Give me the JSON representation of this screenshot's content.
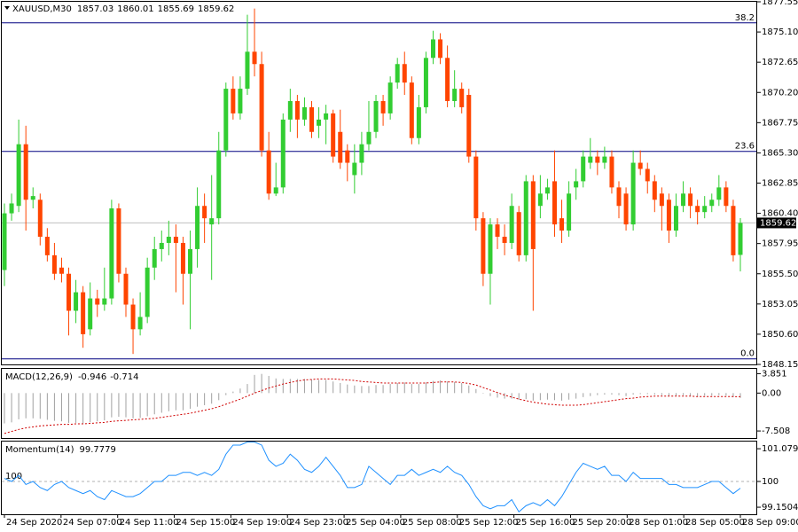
{
  "chart_data": [
    {
      "type": "candlestick",
      "title": "XAUUSD,M30",
      "header_values": [
        1857.03,
        1860.01,
        1855.69,
        1859.62
      ],
      "up_color": "#32cd32",
      "down_color": "#ff4500",
      "ylim": [
        1848.15,
        1877.55
      ],
      "yticks": [
        1877.55,
        {
          "value": 1875.1,
          "label": "1875.10"
        },
        1872.65,
        {
          "value": 1870.2,
          "label": "1870.20"
        },
        1867.75,
        {
          "value": 1865.3,
          "label": "1865.30"
        },
        1862.85,
        {
          "value": 1860.4,
          "label": "1860.40"
        },
        1857.95,
        {
          "value": 1855.5,
          "label": "1855.50"
        },
        1853.05,
        {
          "value": 1850.6,
          "label": "1850.60"
        },
        1848.15
      ],
      "fibo_levels": [
        {
          "name": "38.2",
          "value": 1875.84
        },
        {
          "name": "23.6",
          "value": 1865.42
        },
        {
          "name": "0.0",
          "value": 1848.6
        }
      ],
      "last_price": 1859.62,
      "open": [
        1855.8,
        1860.4,
        1861.0,
        1866.0,
        1861.5,
        1861.5,
        1858.5,
        1857.0,
        1856.0,
        1855.5,
        1852.5,
        1854.0,
        1851.0,
        1853.5,
        1853.0,
        1853.5,
        1860.8,
        1855.5,
        1853.0,
        1851.0,
        1852.0,
        1856.0,
        1857.5,
        1858.0,
        1858.5,
        1858.0,
        1855.5,
        1857.5,
        1861.0,
        1859.5,
        1860.0,
        1865.5,
        1870.5,
        1868.5,
        1870.5,
        1873.5,
        1872.5,
        1865.5,
        1862.0,
        1862.5,
        1868.0,
        1869.5,
        1868.0,
        1869.0,
        1867.5,
        1868.0,
        1868.5,
        1867.0,
        1865.5,
        1863.5,
        1864.5,
        1866.0,
        1867.0,
        1869.5,
        1868.5,
        1871.0,
        1872.5,
        1871.0,
        1866.5,
        1869.0,
        1873.0,
        1874.5,
        1873.0,
        1869.5,
        1870.5,
        1870.0,
        1865.0,
        1860.0,
        1855.5,
        1859.5,
        1858.5,
        1858.0,
        1860.5,
        1857.0,
        1863.0,
        1861.0,
        1862.0,
        1863.0,
        1860.0,
        1859.0,
        1862.5,
        1863.0,
        1864.5,
        1865.0,
        1864.5,
        1865.0,
        1862.5,
        1862.0,
        1859.5,
        1864.5,
        1864.0,
        1863.0,
        1862.0,
        1861.5,
        1859.0,
        1861.0,
        1862.0,
        1861.0,
        1860.5,
        1861.0,
        1861.5,
        1862.5,
        1861.0,
        1857.03
      ],
      "high": [
        1861.2,
        1862.0,
        1868.0,
        1867.5,
        1862.5,
        1862.0,
        1859.2,
        1858.0,
        1856.8,
        1856.0,
        1855.0,
        1854.5,
        1854.8,
        1854.2,
        1856.0,
        1861.5,
        1861.2,
        1856.0,
        1853.5,
        1854.0,
        1856.8,
        1858.5,
        1859.0,
        1859.8,
        1859.5,
        1858.5,
        1859.0,
        1862.5,
        1862.0,
        1863.5,
        1867.0,
        1871.0,
        1871.5,
        1871.5,
        1876.5,
        1877.0,
        1873.5,
        1867.0,
        1864.5,
        1868.5,
        1870.5,
        1870.0,
        1869.8,
        1869.5,
        1869.0,
        1869.2,
        1868.8,
        1868.8,
        1866.0,
        1866.0,
        1867.0,
        1869.5,
        1870.0,
        1870.0,
        1871.5,
        1873.0,
        1873.5,
        1871.5,
        1870.0,
        1873.5,
        1875.2,
        1875.0,
        1874.0,
        1872.0,
        1871.0,
        1870.5,
        1865.5,
        1860.5,
        1860.0,
        1860.0,
        1859.5,
        1862.0,
        1861.0,
        1863.5,
        1863.5,
        1863.5,
        1863.2,
        1865.5,
        1861.5,
        1863.0,
        1864.0,
        1865.5,
        1866.5,
        1865.5,
        1865.8,
        1865.5,
        1863.0,
        1862.5,
        1865.5,
        1865.5,
        1864.5,
        1863.5,
        1862.5,
        1862.0,
        1862.0,
        1863.0,
        1862.5,
        1861.5,
        1861.8,
        1862.0,
        1863.5,
        1863.0,
        1861.5,
        1860.01
      ],
      "low": [
        1854.5,
        1859.8,
        1860.5,
        1859.0,
        1860.8,
        1857.8,
        1856.5,
        1855.0,
        1854.8,
        1850.5,
        1851.5,
        1849.5,
        1850.5,
        1852.0,
        1852.5,
        1853.0,
        1854.8,
        1852.0,
        1849.0,
        1850.5,
        1851.5,
        1855.0,
        1856.5,
        1857.0,
        1854.0,
        1853.0,
        1851.0,
        1856.0,
        1858.0,
        1855.0,
        1859.5,
        1865.0,
        1868.0,
        1868.0,
        1870.0,
        1871.5,
        1865.0,
        1861.5,
        1861.8,
        1862.0,
        1867.0,
        1866.5,
        1867.5,
        1866.5,
        1866.5,
        1866.0,
        1864.5,
        1864.0,
        1863.0,
        1862.0,
        1863.5,
        1865.5,
        1866.5,
        1867.5,
        1868.0,
        1870.5,
        1870.0,
        1866.0,
        1866.0,
        1868.5,
        1872.5,
        1872.5,
        1869.0,
        1869.0,
        1868.5,
        1864.5,
        1859.0,
        1854.5,
        1853.0,
        1857.5,
        1857.0,
        1857.5,
        1856.5,
        1856.5,
        1852.5,
        1860.0,
        1861.5,
        1858.5,
        1858.0,
        1858.5,
        1861.5,
        1862.5,
        1864.0,
        1863.5,
        1864.0,
        1862.0,
        1860.0,
        1859.0,
        1859.0,
        1863.5,
        1862.0,
        1860.5,
        1859.0,
        1858.0,
        1858.5,
        1860.5,
        1860.0,
        1859.5,
        1860.0,
        1860.5,
        1861.0,
        1860.5,
        1856.5,
        1855.69
      ],
      "close": [
        1860.4,
        1861.2,
        1866.0,
        1861.5,
        1861.8,
        1858.5,
        1857.0,
        1855.5,
        1855.5,
        1852.5,
        1854.0,
        1850.6,
        1853.5,
        1853.0,
        1853.5,
        1860.8,
        1855.5,
        1853.0,
        1851.0,
        1852.0,
        1856.0,
        1857.5,
        1858.0,
        1858.5,
        1858.0,
        1855.5,
        1857.5,
        1861.0,
        1860.0,
        1860.0,
        1865.5,
        1870.5,
        1868.5,
        1870.5,
        1873.5,
        1872.5,
        1865.5,
        1862.0,
        1862.5,
        1868.0,
        1869.5,
        1868.0,
        1869.0,
        1867.0,
        1868.0,
        1868.5,
        1865.0,
        1864.5,
        1864.5,
        1864.5,
        1866.0,
        1867.0,
        1869.5,
        1868.5,
        1871.0,
        1872.5,
        1871.0,
        1866.5,
        1869.0,
        1873.0,
        1874.5,
        1873.0,
        1869.5,
        1870.5,
        1869.0,
        1865.0,
        1860.0,
        1855.5,
        1859.5,
        1858.5,
        1858.0,
        1861.0,
        1857.0,
        1863.0,
        1857.5,
        1862.0,
        1862.5,
        1859.5,
        1859.0,
        1862.0,
        1863.0,
        1865.0,
        1865.0,
        1864.5,
        1865.0,
        1862.5,
        1861.0,
        1859.5,
        1864.5,
        1864.0,
        1863.0,
        1861.5,
        1861.0,
        1859.0,
        1861.0,
        1862.0,
        1861.0,
        1860.5,
        1861.0,
        1861.5,
        1862.5,
        1861.0,
        1857.0,
        1859.62
      ],
      "x_tick_labels": [
        "24 Sep 2020",
        "24 Sep 07:00",
        "24 Sep 11:00",
        "24 Sep 15:00",
        "24 Sep 19:00",
        "24 Sep 23:00",
        "25 Sep 04:00",
        "25 Sep 08:00",
        "25 Sep 12:00",
        "25 Sep 16:00",
        "25 Sep 20:00",
        "28 Sep 01:00",
        "28 Sep 05:00",
        "28 Sep 09:00"
      ]
    },
    {
      "type": "macd",
      "title": "MACD(12,26,9)",
      "header_values": [
        -0.946,
        -0.714
      ],
      "hist_color": "#a0a0a0",
      "signal_color": "#d00000",
      "ylim": [
        -8.9,
        4.8
      ],
      "yticks": [
        3.851,
        {
          "value": 0,
          "label": "0.00"
        },
        -7.508
      ],
      "macd": [
        -6.0,
        -5.8,
        -5.2,
        -5.0,
        -5.0,
        -5.1,
        -5.3,
        -5.5,
        -5.6,
        -5.9,
        -5.9,
        -6.0,
        -5.8,
        -5.6,
        -5.4,
        -4.8,
        -4.7,
        -4.8,
        -5.0,
        -4.9,
        -4.6,
        -4.2,
        -3.9,
        -3.6,
        -3.4,
        -3.4,
        -3.1,
        -2.7,
        -2.4,
        -2.1,
        -1.4,
        -0.4,
        0.3,
        0.9,
        1.8,
        3.6,
        3.8,
        3.4,
        2.9,
        2.8,
        2.8,
        2.8,
        2.8,
        2.7,
        2.6,
        2.6,
        2.3,
        2.0,
        1.7,
        1.5,
        1.4,
        1.4,
        1.6,
        1.6,
        1.8,
        2.0,
        2.1,
        1.8,
        1.8,
        2.1,
        2.4,
        2.5,
        2.3,
        2.2,
        2.0,
        1.5,
        0.8,
        -0.1,
        -0.6,
        -0.9,
        -1.1,
        -1.1,
        -1.3,
        -1.2,
        -1.5,
        -1.4,
        -1.3,
        -1.4,
        -1.5,
        -1.3,
        -1.1,
        -0.8,
        -0.6,
        -0.4,
        -0.3,
        -0.3,
        -0.4,
        -0.6,
        -0.3,
        -0.2,
        -0.2,
        -0.3,
        -0.4,
        -0.6,
        -0.5,
        -0.4,
        -0.5,
        -0.6,
        -0.5,
        -0.5,
        -0.4,
        -0.5,
        -0.8,
        -0.946
      ],
      "signal": [
        -8.0,
        -7.6,
        -7.2,
        -6.9,
        -6.7,
        -6.5,
        -6.4,
        -6.3,
        -6.2,
        -6.2,
        -6.1,
        -6.1,
        -6.0,
        -5.9,
        -5.8,
        -5.6,
        -5.5,
        -5.4,
        -5.3,
        -5.2,
        -5.1,
        -5.0,
        -4.8,
        -4.6,
        -4.4,
        -4.2,
        -4.0,
        -3.7,
        -3.4,
        -3.1,
        -2.7,
        -2.2,
        -1.7,
        -1.2,
        -0.6,
        0.0,
        0.5,
        1.0,
        1.4,
        1.8,
        2.1,
        2.4,
        2.6,
        2.7,
        2.8,
        2.8,
        2.8,
        2.7,
        2.6,
        2.5,
        2.3,
        2.2,
        2.1,
        2.0,
        2.0,
        2.0,
        2.0,
        2.0,
        2.0,
        2.0,
        2.1,
        2.2,
        2.2,
        2.2,
        2.1,
        1.9,
        1.6,
        1.1,
        0.6,
        0.1,
        -0.4,
        -0.8,
        -1.2,
        -1.5,
        -1.8,
        -2.0,
        -2.2,
        -2.3,
        -2.4,
        -2.4,
        -2.4,
        -2.3,
        -2.1,
        -1.9,
        -1.7,
        -1.5,
        -1.3,
        -1.1,
        -1.0,
        -0.8,
        -0.7,
        -0.6,
        -0.6,
        -0.6,
        -0.6,
        -0.6,
        -0.6,
        -0.7,
        -0.7,
        -0.7,
        -0.7,
        -0.7,
        -0.7,
        -0.714
      ]
    },
    {
      "type": "momentum",
      "title": "Momentum(14)",
      "header_values": [
        99.7779
      ],
      "color": "#1e90ff",
      "level": 100,
      "ylim": [
        98.918,
        101.316
      ],
      "yticks": [
        101.0796,
        100,
        99.1504
      ],
      "values": [
        100.1,
        100.0,
        100.2,
        99.9,
        100.0,
        99.8,
        99.7,
        99.9,
        100.0,
        99.8,
        99.7,
        99.6,
        99.7,
        99.5,
        99.4,
        99.7,
        99.6,
        99.5,
        99.5,
        99.6,
        99.8,
        100.0,
        100.0,
        100.2,
        100.2,
        100.3,
        100.3,
        100.2,
        100.3,
        100.2,
        100.4,
        100.9,
        101.2,
        101.2,
        101.3,
        101.3,
        101.2,
        100.7,
        100.5,
        100.6,
        100.9,
        100.7,
        100.4,
        100.3,
        100.5,
        100.8,
        100.5,
        100.2,
        99.8,
        99.8,
        99.9,
        100.5,
        100.3,
        100.1,
        99.9,
        100.2,
        100.2,
        100.4,
        100.2,
        100.3,
        100.4,
        100.3,
        100.5,
        100.3,
        100.2,
        99.9,
        99.5,
        99.2,
        99.1,
        99.2,
        99.2,
        99.4,
        99.0,
        99.2,
        99.3,
        99.2,
        99.4,
        99.2,
        99.5,
        99.9,
        100.3,
        100.6,
        100.5,
        100.4,
        100.5,
        100.2,
        100.2,
        100.0,
        100.3,
        100.1,
        100.1,
        100.1,
        100.1,
        99.9,
        99.9,
        99.8,
        99.8,
        99.8,
        99.9,
        100.0,
        100.0,
        99.8,
        99.6,
        99.7779
      ]
    }
  ]
}
